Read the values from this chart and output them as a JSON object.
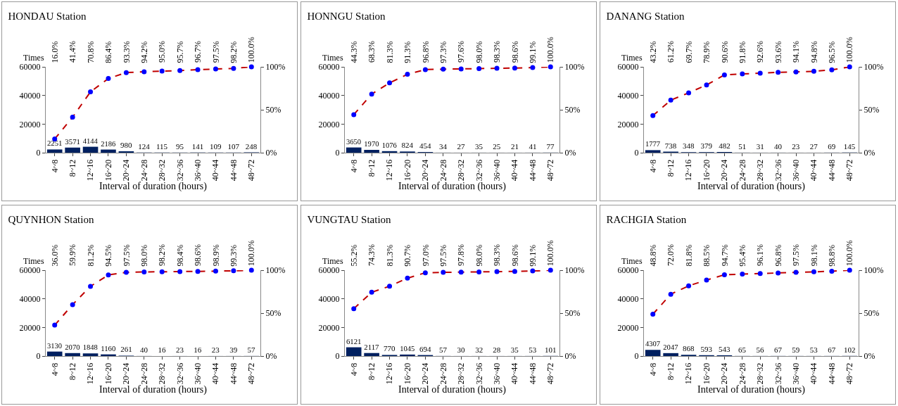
{
  "chart_data": [
    {
      "type": "bar",
      "title": "HONDAU Station",
      "xlabel": "Interval of duration (hours)",
      "ylabel": "Times",
      "categories": [
        "4~8",
        "8~12",
        "12~16",
        "16~20",
        "20~24",
        "24~28",
        "28~32",
        "32~36",
        "36~40",
        "40~44",
        "44~48",
        "48~72"
      ],
      "ylim": [
        0,
        60000
      ],
      "yticks": [
        0,
        20000,
        40000,
        60000
      ],
      "y2lim": [
        0,
        100
      ],
      "y2ticks": [
        {
          "value": 0,
          "label": "0%"
        },
        {
          "value": 50,
          "label": "50%"
        },
        {
          "value": 100,
          "label": "100%"
        }
      ],
      "marker": "circle",
      "line_style": "dashed",
      "series": [
        {
          "color": "#002060",
          "values": [
            2251,
            3571,
            4144,
            2186,
            980,
            124,
            115,
            95,
            141,
            109,
            107,
            248
          ],
          "value_labels": [
            "2251",
            "3571",
            "4144",
            "2186",
            "980",
            "124",
            "115",
            "95",
            "141",
            "109",
            "107",
            "248"
          ]
        },
        {
          "type": "line",
          "axis": "y2",
          "color": "#c00000",
          "colors": [
            "#0000ff",
            "#0000ff",
            "#0000ff",
            "#0000ff",
            "#0000ff",
            "#0000ff",
            "#0000ff",
            "#0000ff",
            "#0000ff",
            "#0000ff",
            "#0000ff",
            "#0000ff"
          ],
          "values": [
            16.0,
            41.4,
            70.8,
            86.4,
            93.3,
            94.2,
            95.0,
            95.7,
            96.7,
            97.5,
            98.2,
            100.0
          ],
          "value_labels": [
            "16.0%",
            "41.4%",
            "70.8%",
            "86.4%",
            "93.3%",
            "94.2%",
            "95.0%",
            "95.7%",
            "96.7%",
            "97.5%",
            "98.2%",
            "100.0%"
          ]
        }
      ]
    },
    {
      "type": "bar",
      "title": "HONNGU Station",
      "xlabel": "Interval of duration (hours)",
      "ylabel": "Times",
      "categories": [
        "4~8",
        "8~12",
        "12~16",
        "16~20",
        "20~24",
        "24~28",
        "28~32",
        "32~36",
        "36~40",
        "40~44",
        "44~48",
        "48~72"
      ],
      "ylim": [
        0,
        60000
      ],
      "yticks": [
        0,
        20000,
        40000,
        60000
      ],
      "y2lim": [
        0,
        100
      ],
      "y2ticks": [
        {
          "value": 0,
          "label": "0%"
        },
        {
          "value": 50,
          "label": "50%"
        },
        {
          "value": 100,
          "label": "100%"
        }
      ],
      "marker": "circle",
      "line_style": "dashed",
      "series": [
        {
          "color": "#002060",
          "values": [
            3650,
            1970,
            1076,
            824,
            454,
            34,
            27,
            35,
            25,
            21,
            41,
            77
          ],
          "value_labels": [
            "3650",
            "1970",
            "1076",
            "824",
            "454",
            "34",
            "27",
            "35",
            "25",
            "21",
            "41",
            "77"
          ]
        },
        {
          "type": "line",
          "axis": "y2",
          "color": "#c00000",
          "colors": [
            "#0000ff",
            "#0000ff",
            "#0000ff",
            "#0000ff",
            "#0000ff",
            "#0000ff",
            "#0000ff",
            "#0000ff",
            "#0000ff",
            "#0000ff",
            "#0000ff",
            "#0000ff"
          ],
          "values": [
            44.3,
            68.3,
            81.3,
            91.3,
            96.8,
            97.3,
            97.6,
            98.0,
            98.3,
            98.6,
            99.1,
            100.0
          ],
          "value_labels": [
            "44.3%",
            "68.3%",
            "81.3%",
            "91.3%",
            "96.8%",
            "97.3%",
            "97.6%",
            "98.0%",
            "98.3%",
            "98.6%",
            "99.1%",
            "100.0%"
          ]
        }
      ]
    },
    {
      "type": "bar",
      "title": "DANANG Station",
      "xlabel": "Interval of duration (hours)",
      "ylabel": "Times",
      "categories": [
        "4~8",
        "8~12",
        "12~16",
        "16~20",
        "20~24",
        "24~28",
        "28~32",
        "32~36",
        "36~40",
        "40~44",
        "44~48",
        "48~72"
      ],
      "ylim": [
        0,
        60000
      ],
      "yticks": [
        0,
        20000,
        40000,
        60000
      ],
      "y2lim": [
        0,
        100
      ],
      "y2ticks": [
        {
          "value": 0,
          "label": "0%"
        },
        {
          "value": 50,
          "label": "50%"
        },
        {
          "value": 100,
          "label": "100%"
        }
      ],
      "marker": "circle",
      "line_style": "dashed",
      "series": [
        {
          "color": "#002060",
          "values": [
            1777,
            738,
            348,
            379,
            482,
            51,
            31,
            40,
            23,
            27,
            69,
            145
          ],
          "value_labels": [
            "1777",
            "738",
            "348",
            "379",
            "482",
            "51",
            "31",
            "40",
            "23",
            "27",
            "69",
            "145"
          ]
        },
        {
          "type": "line",
          "axis": "y2",
          "color": "#c00000",
          "colors": [
            "#0000ff",
            "#0000ff",
            "#0000ff",
            "#0000ff",
            "#0000ff",
            "#0000ff",
            "#0000ff",
            "#0000ff",
            "#0000ff",
            "#0000ff",
            "#0000ff",
            "#0000ff"
          ],
          "values": [
            43.2,
            61.2,
            69.7,
            78.9,
            90.6,
            91.8,
            92.6,
            93.6,
            94.1,
            94.8,
            96.5,
            100.0
          ],
          "value_labels": [
            "43.2%",
            "61.2%",
            "69.7%",
            "78.9%",
            "90.6%",
            "91.8%",
            "92.6%",
            "93.6%",
            "94.1%",
            "94.8%",
            "96.5%",
            "100.0%"
          ]
        }
      ]
    },
    {
      "type": "bar",
      "title": "QUYNHON Station",
      "xlabel": "Interval of duration (hours)",
      "ylabel": "Times",
      "categories": [
        "4~8",
        "8~12",
        "12~16",
        "16~20",
        "20~24",
        "24~28",
        "28~32",
        "32~36",
        "36~40",
        "40~44",
        "44~48",
        "48~72"
      ],
      "ylim": [
        0,
        60000
      ],
      "yticks": [
        0,
        20000,
        40000,
        60000
      ],
      "y2lim": [
        0,
        100
      ],
      "y2ticks": [
        {
          "value": 0,
          "label": "0%"
        },
        {
          "value": 50,
          "label": "50%"
        },
        {
          "value": 100,
          "label": "100%"
        }
      ],
      "marker": "circle",
      "line_style": "dashed",
      "series": [
        {
          "color": "#002060",
          "values": [
            3130,
            2070,
            1848,
            1160,
            261,
            40,
            16,
            23,
            16,
            23,
            39,
            57
          ],
          "value_labels": [
            "3130",
            "2070",
            "1848",
            "1160",
            "261",
            "40",
            "16",
            "23",
            "16",
            "23",
            "39",
            "57"
          ]
        },
        {
          "type": "line",
          "axis": "y2",
          "color": "#c00000",
          "colors": [
            "#0000ff",
            "#0000ff",
            "#0000ff",
            "#0000ff",
            "#0000ff",
            "#0000ff",
            "#0000ff",
            "#0000ff",
            "#0000ff",
            "#0000ff",
            "#0000ff",
            "#0000ff"
          ],
          "values": [
            36.0,
            59.9,
            81.2,
            94.5,
            97.5,
            98.0,
            98.2,
            98.4,
            98.6,
            98.9,
            99.3,
            100.0
          ],
          "value_labels": [
            "36.0%",
            "59.9%",
            "81.2%",
            "94.5%",
            "97.5%",
            "98.0%",
            "98.2%",
            "98.4%",
            "98.6%",
            "98.9%",
            "99.3%",
            "100.0%"
          ]
        }
      ]
    },
    {
      "type": "bar",
      "title": "VUNGTAU Station",
      "xlabel": "Interval of duration (hours)",
      "ylabel": "Times",
      "categories": [
        "4~8",
        "8~12",
        "12~16",
        "16~20",
        "20~24",
        "24~28",
        "28~32",
        "32~36",
        "36~40",
        "40~44",
        "44~48",
        "48~72"
      ],
      "ylim": [
        0,
        60000
      ],
      "yticks": [
        0,
        20000,
        40000,
        60000
      ],
      "y2lim": [
        0,
        100
      ],
      "y2ticks": [
        {
          "value": 0,
          "label": "0%"
        },
        {
          "value": 50,
          "label": "50%"
        },
        {
          "value": 100,
          "label": "100%"
        }
      ],
      "marker": "circle",
      "line_style": "dashed",
      "series": [
        {
          "color": "#002060",
          "values": [
            6121,
            2117,
            770,
            1045,
            694,
            57,
            30,
            32,
            28,
            35,
            53,
            101
          ],
          "value_labels": [
            "6121",
            "2117",
            "770",
            "1045",
            "694",
            "57",
            "30",
            "32",
            "28",
            "35",
            "53",
            "101"
          ]
        },
        {
          "type": "line",
          "axis": "y2",
          "color": "#c00000",
          "colors": [
            "#0000ff",
            "#0000ff",
            "#0000ff",
            "#0000ff",
            "#0000ff",
            "#0000ff",
            "#0000ff",
            "#0000ff",
            "#0000ff",
            "#0000ff",
            "#0000ff",
            "#0000ff"
          ],
          "values": [
            55.2,
            74.3,
            81.3,
            90.7,
            97.0,
            97.5,
            97.8,
            98.0,
            98.3,
            98.6,
            99.1,
            100.0
          ],
          "value_labels": [
            "55.2%",
            "74.3%",
            "81.3%",
            "90.7%",
            "97.0%",
            "97.5%",
            "97.8%",
            "98.0%",
            "98.3%",
            "98.6%",
            "99.1%",
            "100.0%"
          ]
        }
      ]
    },
    {
      "type": "bar",
      "title": "RACHGIA Station",
      "xlabel": "Interval of duration (hours)",
      "ylabel": "Times",
      "categories": [
        "4~8",
        "8~12",
        "12~16",
        "16~20",
        "20~24",
        "24~28",
        "28~32",
        "32~36",
        "36~40",
        "40~44",
        "44~48",
        "48~72"
      ],
      "ylim": [
        0,
        60000
      ],
      "yticks": [
        0,
        20000,
        40000,
        60000
      ],
      "y2lim": [
        0,
        100
      ],
      "y2ticks": [
        {
          "value": 0,
          "label": "0%"
        },
        {
          "value": 50,
          "label": "50%"
        },
        {
          "value": 100,
          "label": "100%"
        }
      ],
      "marker": "circle",
      "line_style": "dashed",
      "series": [
        {
          "color": "#002060",
          "values": [
            4307,
            2047,
            868,
            593,
            543,
            65,
            56,
            67,
            59,
            53,
            67,
            102
          ],
          "value_labels": [
            "4307",
            "2047",
            "868",
            "593",
            "543",
            "65",
            "56",
            "67",
            "59",
            "53",
            "67",
            "102"
          ]
        },
        {
          "type": "line",
          "axis": "y2",
          "color": "#c00000",
          "colors": [
            "#0000ff",
            "#0000ff",
            "#0000ff",
            "#0000ff",
            "#0000ff",
            "#0000ff",
            "#0000ff",
            "#0000ff",
            "#0000ff",
            "#0000ff",
            "#0000ff",
            "#0000ff"
          ],
          "values": [
            48.8,
            72.0,
            81.8,
            88.5,
            94.7,
            95.4,
            96.1,
            96.8,
            97.5,
            98.1,
            98.8,
            100.0
          ],
          "value_labels": [
            "48.8%",
            "72.0%",
            "81.8%",
            "88.5%",
            "94.7%",
            "95.4%",
            "96.1%",
            "96.8%",
            "97.5%",
            "98.1%",
            "98.8%",
            "100.0%"
          ]
        }
      ]
    }
  ]
}
